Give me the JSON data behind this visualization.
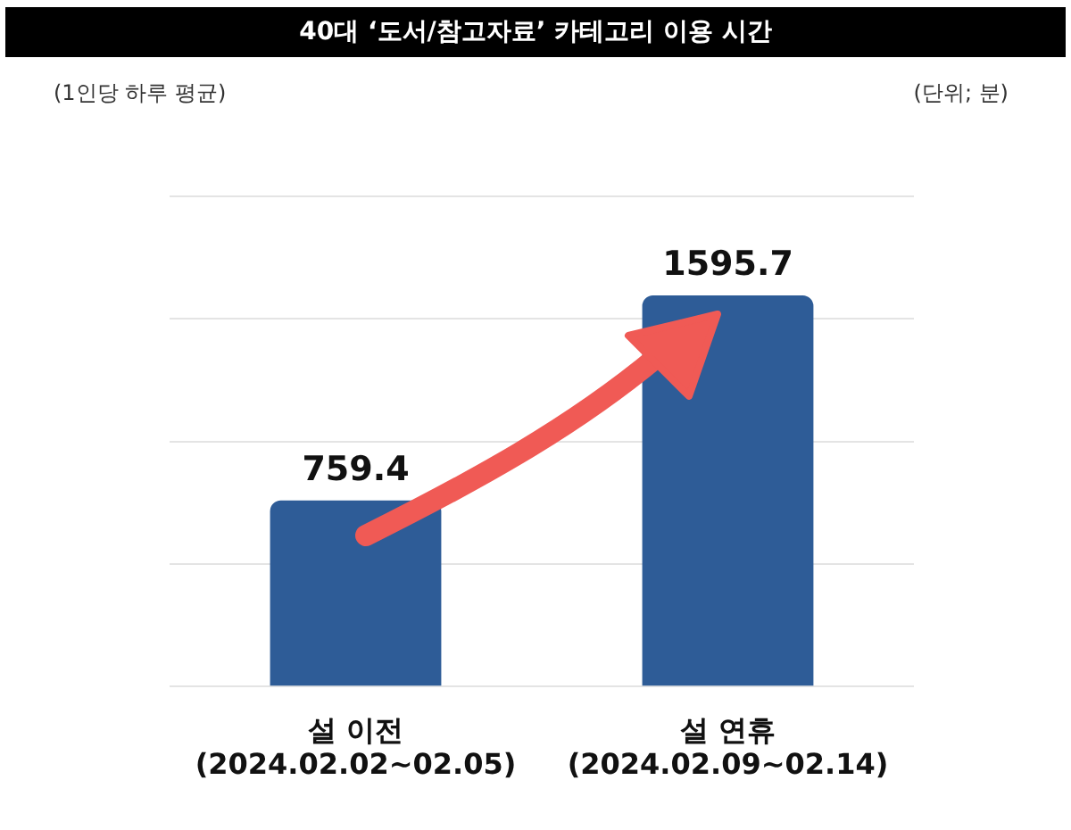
{
  "chart_data": {
    "type": "bar",
    "title": "40대 ‘도서/참고자료’ 카테고리 이용 시간",
    "subtitle": "(1인당 하루 평균)",
    "annotations": [
      "(단위; 분)"
    ],
    "categories": [
      "설 이전\n(2024.02.02~02.05)",
      "설 연휴\n(2024.02.09~02.14)"
    ],
    "values": [
      759.4,
      1595.7
    ],
    "color": "#2e5c97",
    "data_labels": true,
    "grid": "y",
    "legend": false,
    "tick_labels": "x"
  }
}
